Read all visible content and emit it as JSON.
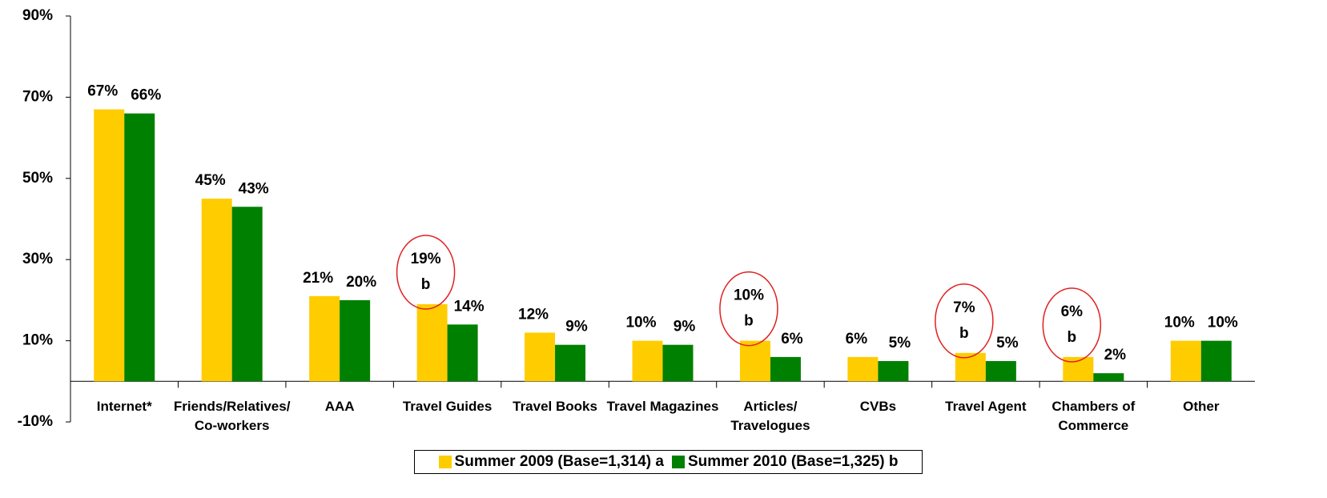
{
  "chart_data": {
    "type": "bar",
    "categories": [
      "Internet*",
      "Friends/Relatives/\nCo-workers",
      "AAA",
      "Travel Guides",
      "Travel Books",
      "Travel Magazines",
      "Articles/\nTravelogues",
      "CVBs",
      "Travel Agent",
      "Chambers of\nCommerce",
      "Other"
    ],
    "series": [
      {
        "name": "Summer 2009 (Base=1,314) a",
        "color": "#ffcc00",
        "values": [
          67,
          45,
          21,
          19,
          12,
          10,
          10,
          6,
          7,
          6,
          10
        ],
        "value_labels": [
          "67%",
          "45%",
          "21%",
          "19%",
          "12%",
          "10%",
          "10%",
          "6%",
          "7%",
          "6%",
          "10%"
        ]
      },
      {
        "name": "Summer 2010 (Base=1,325) b",
        "color": "#008000",
        "values": [
          66,
          43,
          20,
          14,
          9,
          9,
          6,
          5,
          5,
          2,
          10
        ],
        "value_labels": [
          "66%",
          "43%",
          "20%",
          "14%",
          "9%",
          "9%",
          "6%",
          "5%",
          "5%",
          "2%",
          "10%"
        ]
      }
    ],
    "annotations": [
      {
        "category": "Travel Guides",
        "text": "b"
      },
      {
        "category": "Articles/\nTravelogues",
        "text": "b"
      },
      {
        "category": "Travel Agent",
        "text": "b"
      },
      {
        "category": "Chambers of\nCommerce",
        "text": "b"
      }
    ],
    "ylim": [
      -10,
      90
    ],
    "yticks": [
      {
        "value": -10,
        "label": "-10%"
      },
      {
        "value": 10,
        "label": "10%"
      },
      {
        "value": 30,
        "label": "30%"
      },
      {
        "value": 50,
        "label": "50%"
      },
      {
        "value": 70,
        "label": "70%"
      },
      {
        "value": 90,
        "label": "90%"
      }
    ],
    "grid": false,
    "legend": "bottom"
  }
}
